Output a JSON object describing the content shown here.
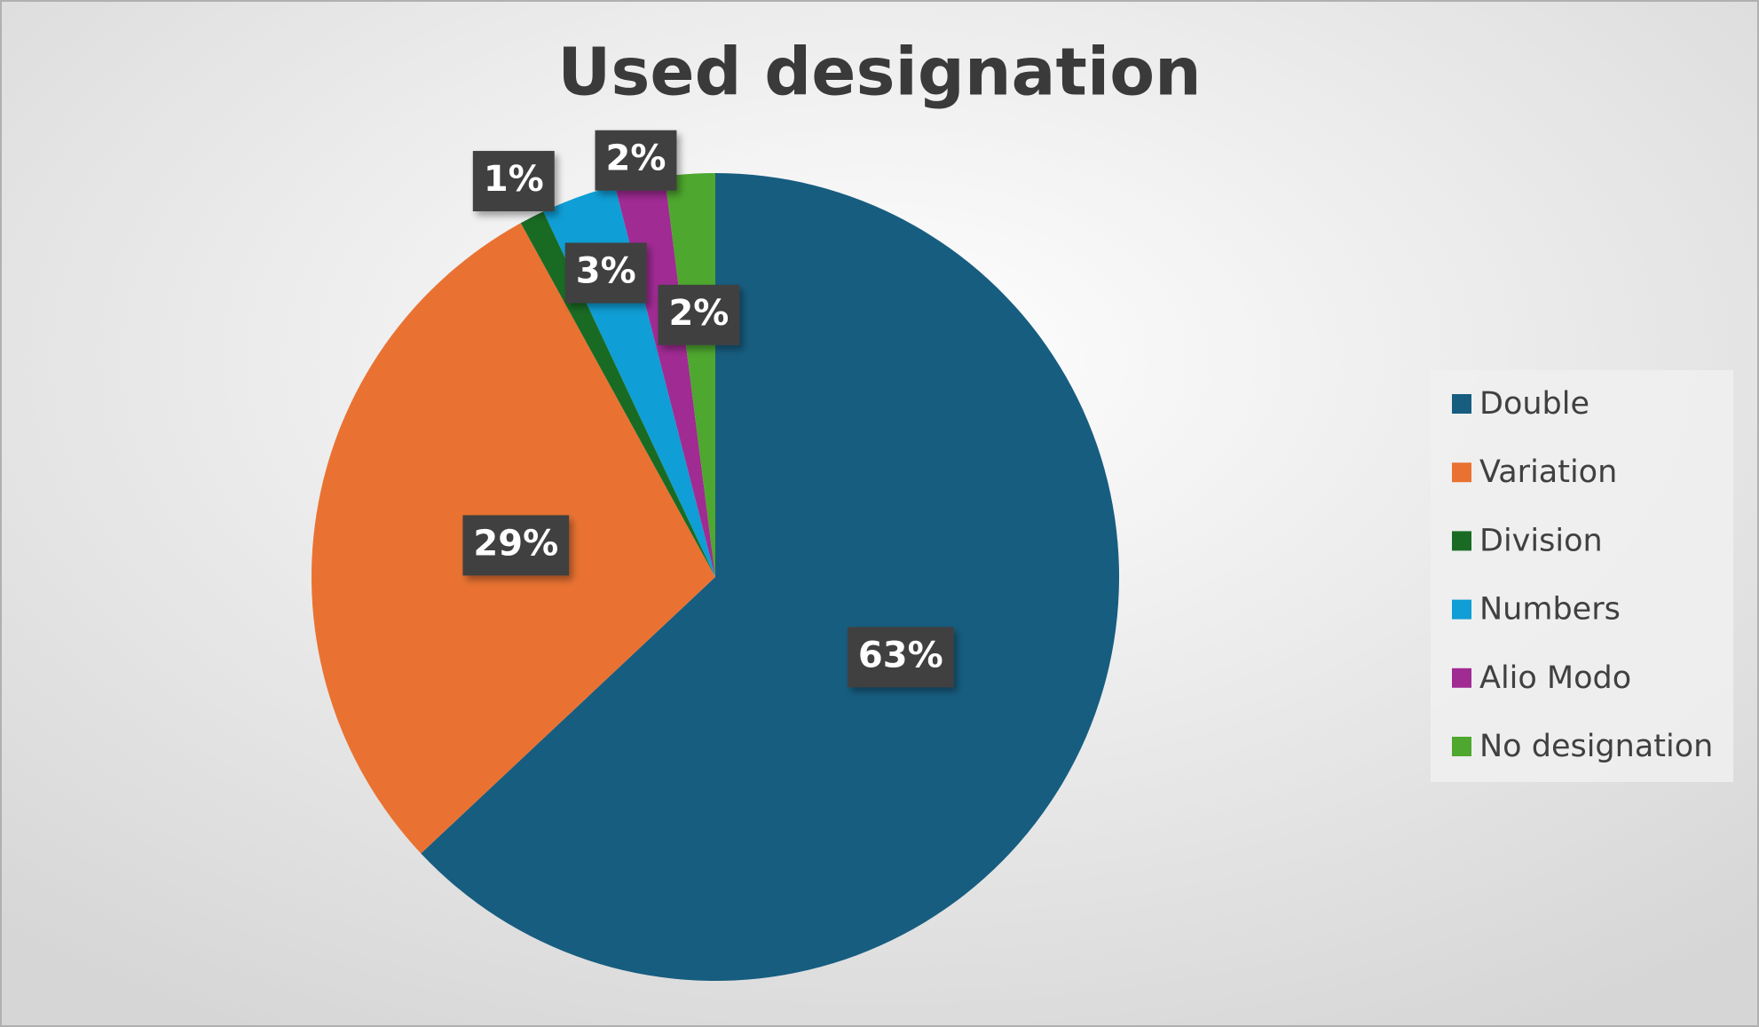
{
  "chart_data": {
    "type": "pie",
    "title": "Used designation",
    "categories": [
      "Double",
      "Variation",
      "Division",
      "Numbers",
      "Alio Modo",
      "No designation"
    ],
    "values": [
      63,
      29,
      1,
      3,
      2,
      2
    ],
    "value_labels": [
      "63%",
      "29%",
      "1%",
      "3%",
      "2%",
      "2%"
    ],
    "colors": [
      "#175d80",
      "#e97232",
      "#196b24",
      "#0f9ed5",
      "#a02b93",
      "#4ea72e"
    ],
    "legend": "right"
  }
}
